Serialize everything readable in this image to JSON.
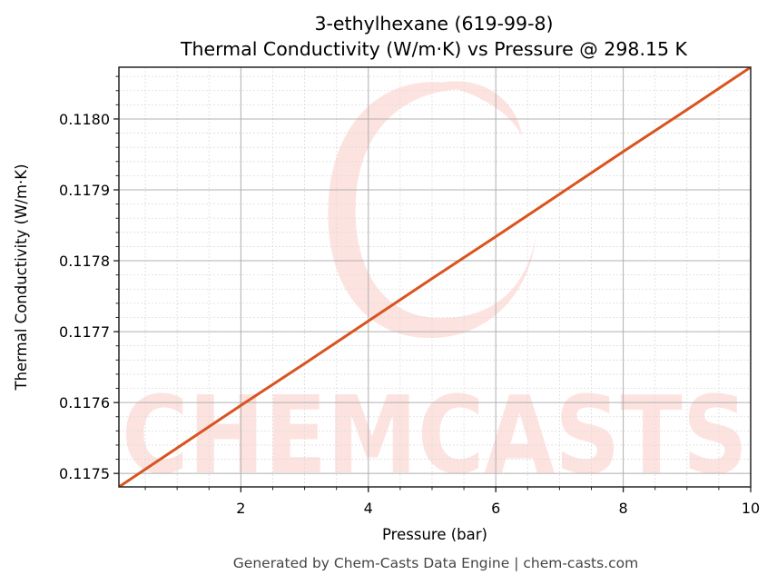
{
  "title_line1": "3-ethylhexane (619-99-8)",
  "title_line2": "Thermal Conductivity (W/m·K) vs Pressure @ 298.15 K",
  "xlabel": "Pressure (bar)",
  "ylabel": "Thermal Conductivity (W/m·K)",
  "footer": "Generated by Chem-Casts Data Engine | chem-casts.com",
  "watermark": "CHEMCASTS",
  "colors": {
    "line": "#d9541e",
    "watermark": "#fde3e0",
    "major_grid": "#b0b0b0",
    "minor_grid": "#dcdcdc",
    "axis": "#222222"
  },
  "chart_data": {
    "type": "line",
    "title": "3-ethylhexane (619-99-8)\nThermal Conductivity (W/m·K) vs Pressure @ 298.15 K",
    "xlabel": "Pressure (bar)",
    "ylabel": "Thermal Conductivity (W/m·K)",
    "xlim": [
      0.086,
      10
    ],
    "ylim": [
      0.117481,
      0.118073
    ],
    "x_ticks": [
      2,
      4,
      6,
      8,
      10
    ],
    "x_tick_labels": [
      "2",
      "4",
      "6",
      "8",
      "10"
    ],
    "y_ticks": [
      0.1175,
      0.1176,
      0.1177,
      0.1178,
      0.1179,
      0.118
    ],
    "y_tick_labels": [
      "0.1175",
      "0.1176",
      "0.1177",
      "0.1178",
      "0.1179",
      "0.1180"
    ],
    "x_minor_step": 0.5,
    "y_minor_step": 2e-05,
    "grid": true,
    "legend": null,
    "series": [
      {
        "name": "Thermal Conductivity",
        "x": [
          0.086,
          1,
          2,
          3,
          4,
          5,
          6,
          7,
          8,
          9,
          10
        ],
        "values": [
          0.117481,
          0.117536,
          0.117596,
          0.117655,
          0.117715,
          0.117775,
          0.117834,
          0.117894,
          0.117954,
          0.118013,
          0.118073
        ]
      }
    ]
  }
}
